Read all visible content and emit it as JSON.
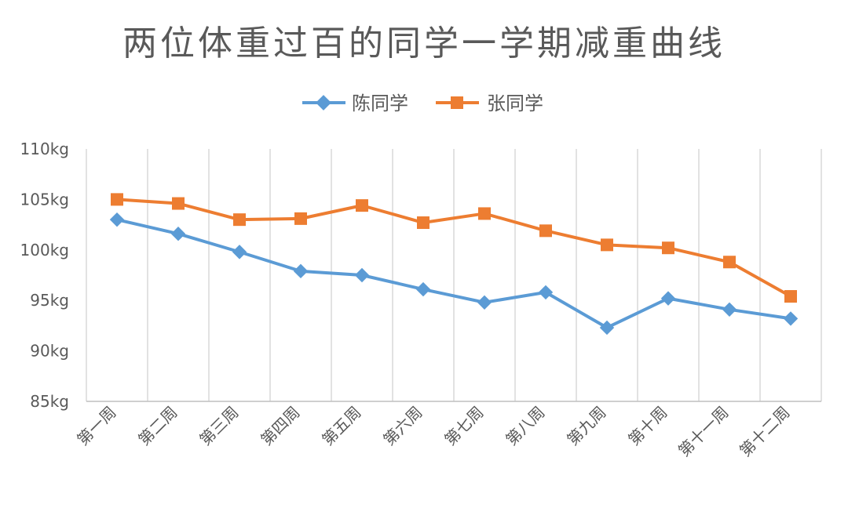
{
  "chart_data": {
    "type": "line",
    "title": "两位体重过百的同学一学期减重曲线",
    "xlabel": "",
    "ylabel": "",
    "categories": [
      "第一周",
      "第二周",
      "第三周",
      "第四周",
      "第五周",
      "第六周",
      "第七周",
      "第八周",
      "第九周",
      "第十周",
      "第十一周",
      "第十二周"
    ],
    "ylim": [
      85,
      110
    ],
    "yticks": [
      85,
      90,
      95,
      100,
      105,
      110
    ],
    "ytick_labels": [
      "85kg",
      "90kg",
      "95kg",
      "100kg",
      "105kg",
      "110kg"
    ],
    "grid": "vertical",
    "legend_position": "top",
    "series": [
      {
        "name": "陈同学",
        "color": "#5B9BD5",
        "marker": "diamond",
        "values": [
          103.0,
          101.6,
          99.8,
          97.9,
          97.5,
          96.1,
          94.8,
          95.8,
          92.3,
          95.2,
          94.1,
          93.2
        ]
      },
      {
        "name": "张同学",
        "color": "#ED7D31",
        "marker": "square",
        "values": [
          105.0,
          104.6,
          103.0,
          103.1,
          104.4,
          102.7,
          103.6,
          101.9,
          100.5,
          100.2,
          98.8,
          95.4
        ]
      }
    ]
  }
}
